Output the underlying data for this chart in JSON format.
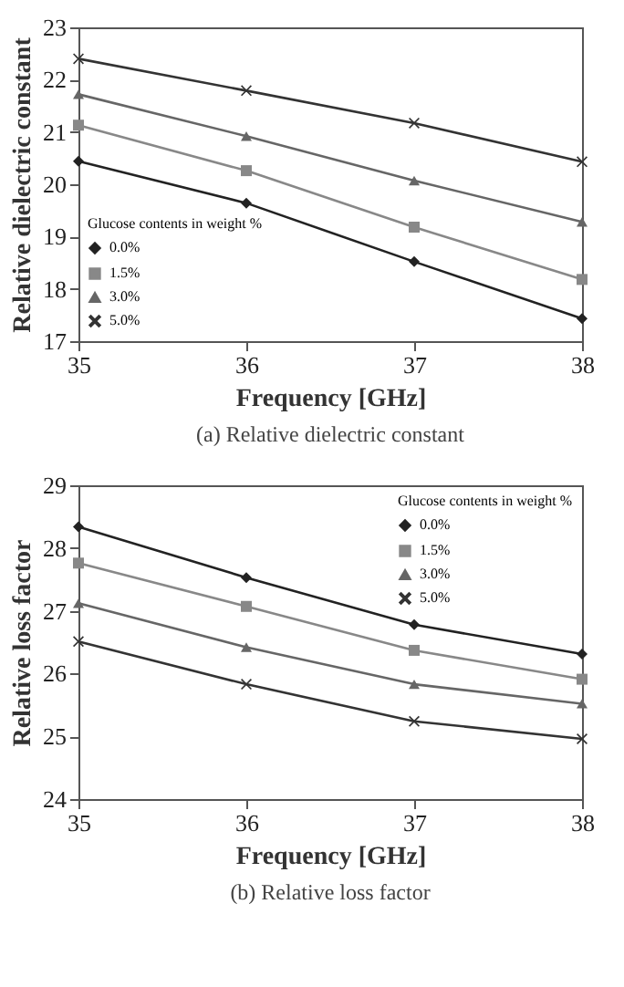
{
  "chart_data": [
    {
      "type": "line",
      "title": "(a)  Relative dielectric constant",
      "xlabel": "Frequency [GHz]",
      "ylabel": "Relative dielectric constant",
      "legend_title": "Glucose contents in weight %",
      "legend": "bottom left",
      "grid": false,
      "x": [
        35,
        36,
        37,
        38
      ],
      "xlim": [
        35,
        38
      ],
      "xticks": [
        35,
        36,
        37,
        38
      ],
      "ylim": [
        17,
        23
      ],
      "yticks": [
        17,
        18,
        19,
        20,
        21,
        22,
        23
      ],
      "series": [
        {
          "name": "0.0%",
          "color": "#222222",
          "marker": "diamond",
          "values": [
            20.44,
            19.64,
            18.52,
            17.43
          ]
        },
        {
          "name": "1.5%",
          "color": "#888888",
          "marker": "square",
          "values": [
            21.13,
            20.26,
            19.18,
            18.18
          ]
        },
        {
          "name": "3.0%",
          "color": "#666666",
          "marker": "triangle",
          "values": [
            21.72,
            20.92,
            20.07,
            19.28
          ]
        },
        {
          "name": "5.0%",
          "color": "#333333",
          "marker": "cross",
          "values": [
            22.4,
            21.79,
            21.17,
            20.43
          ]
        }
      ]
    },
    {
      "type": "line",
      "title": "(b)  Relative loss factor",
      "xlabel": "Frequency [GHz]",
      "ylabel": "Relative loss factor",
      "legend_title": "Glucose contents in weight %",
      "legend": "top right",
      "grid": false,
      "x": [
        35,
        36,
        37,
        38
      ],
      "xlim": [
        35,
        38
      ],
      "xticks": [
        35,
        36,
        37,
        38
      ],
      "ylim": [
        24,
        29
      ],
      "yticks": [
        24,
        25,
        26,
        27,
        28,
        29
      ],
      "series": [
        {
          "name": "0.0%",
          "color": "#222222",
          "marker": "diamond",
          "values": [
            28.34,
            27.53,
            26.78,
            26.31
          ]
        },
        {
          "name": "1.5%",
          "color": "#888888",
          "marker": "square",
          "values": [
            27.76,
            27.07,
            26.37,
            25.91
          ]
        },
        {
          "name": "3.0%",
          "color": "#666666",
          "marker": "triangle",
          "values": [
            27.12,
            26.42,
            25.83,
            25.52
          ]
        },
        {
          "name": "5.0%",
          "color": "#333333",
          "marker": "cross",
          "values": [
            26.51,
            25.83,
            25.24,
            24.96
          ]
        }
      ]
    }
  ]
}
